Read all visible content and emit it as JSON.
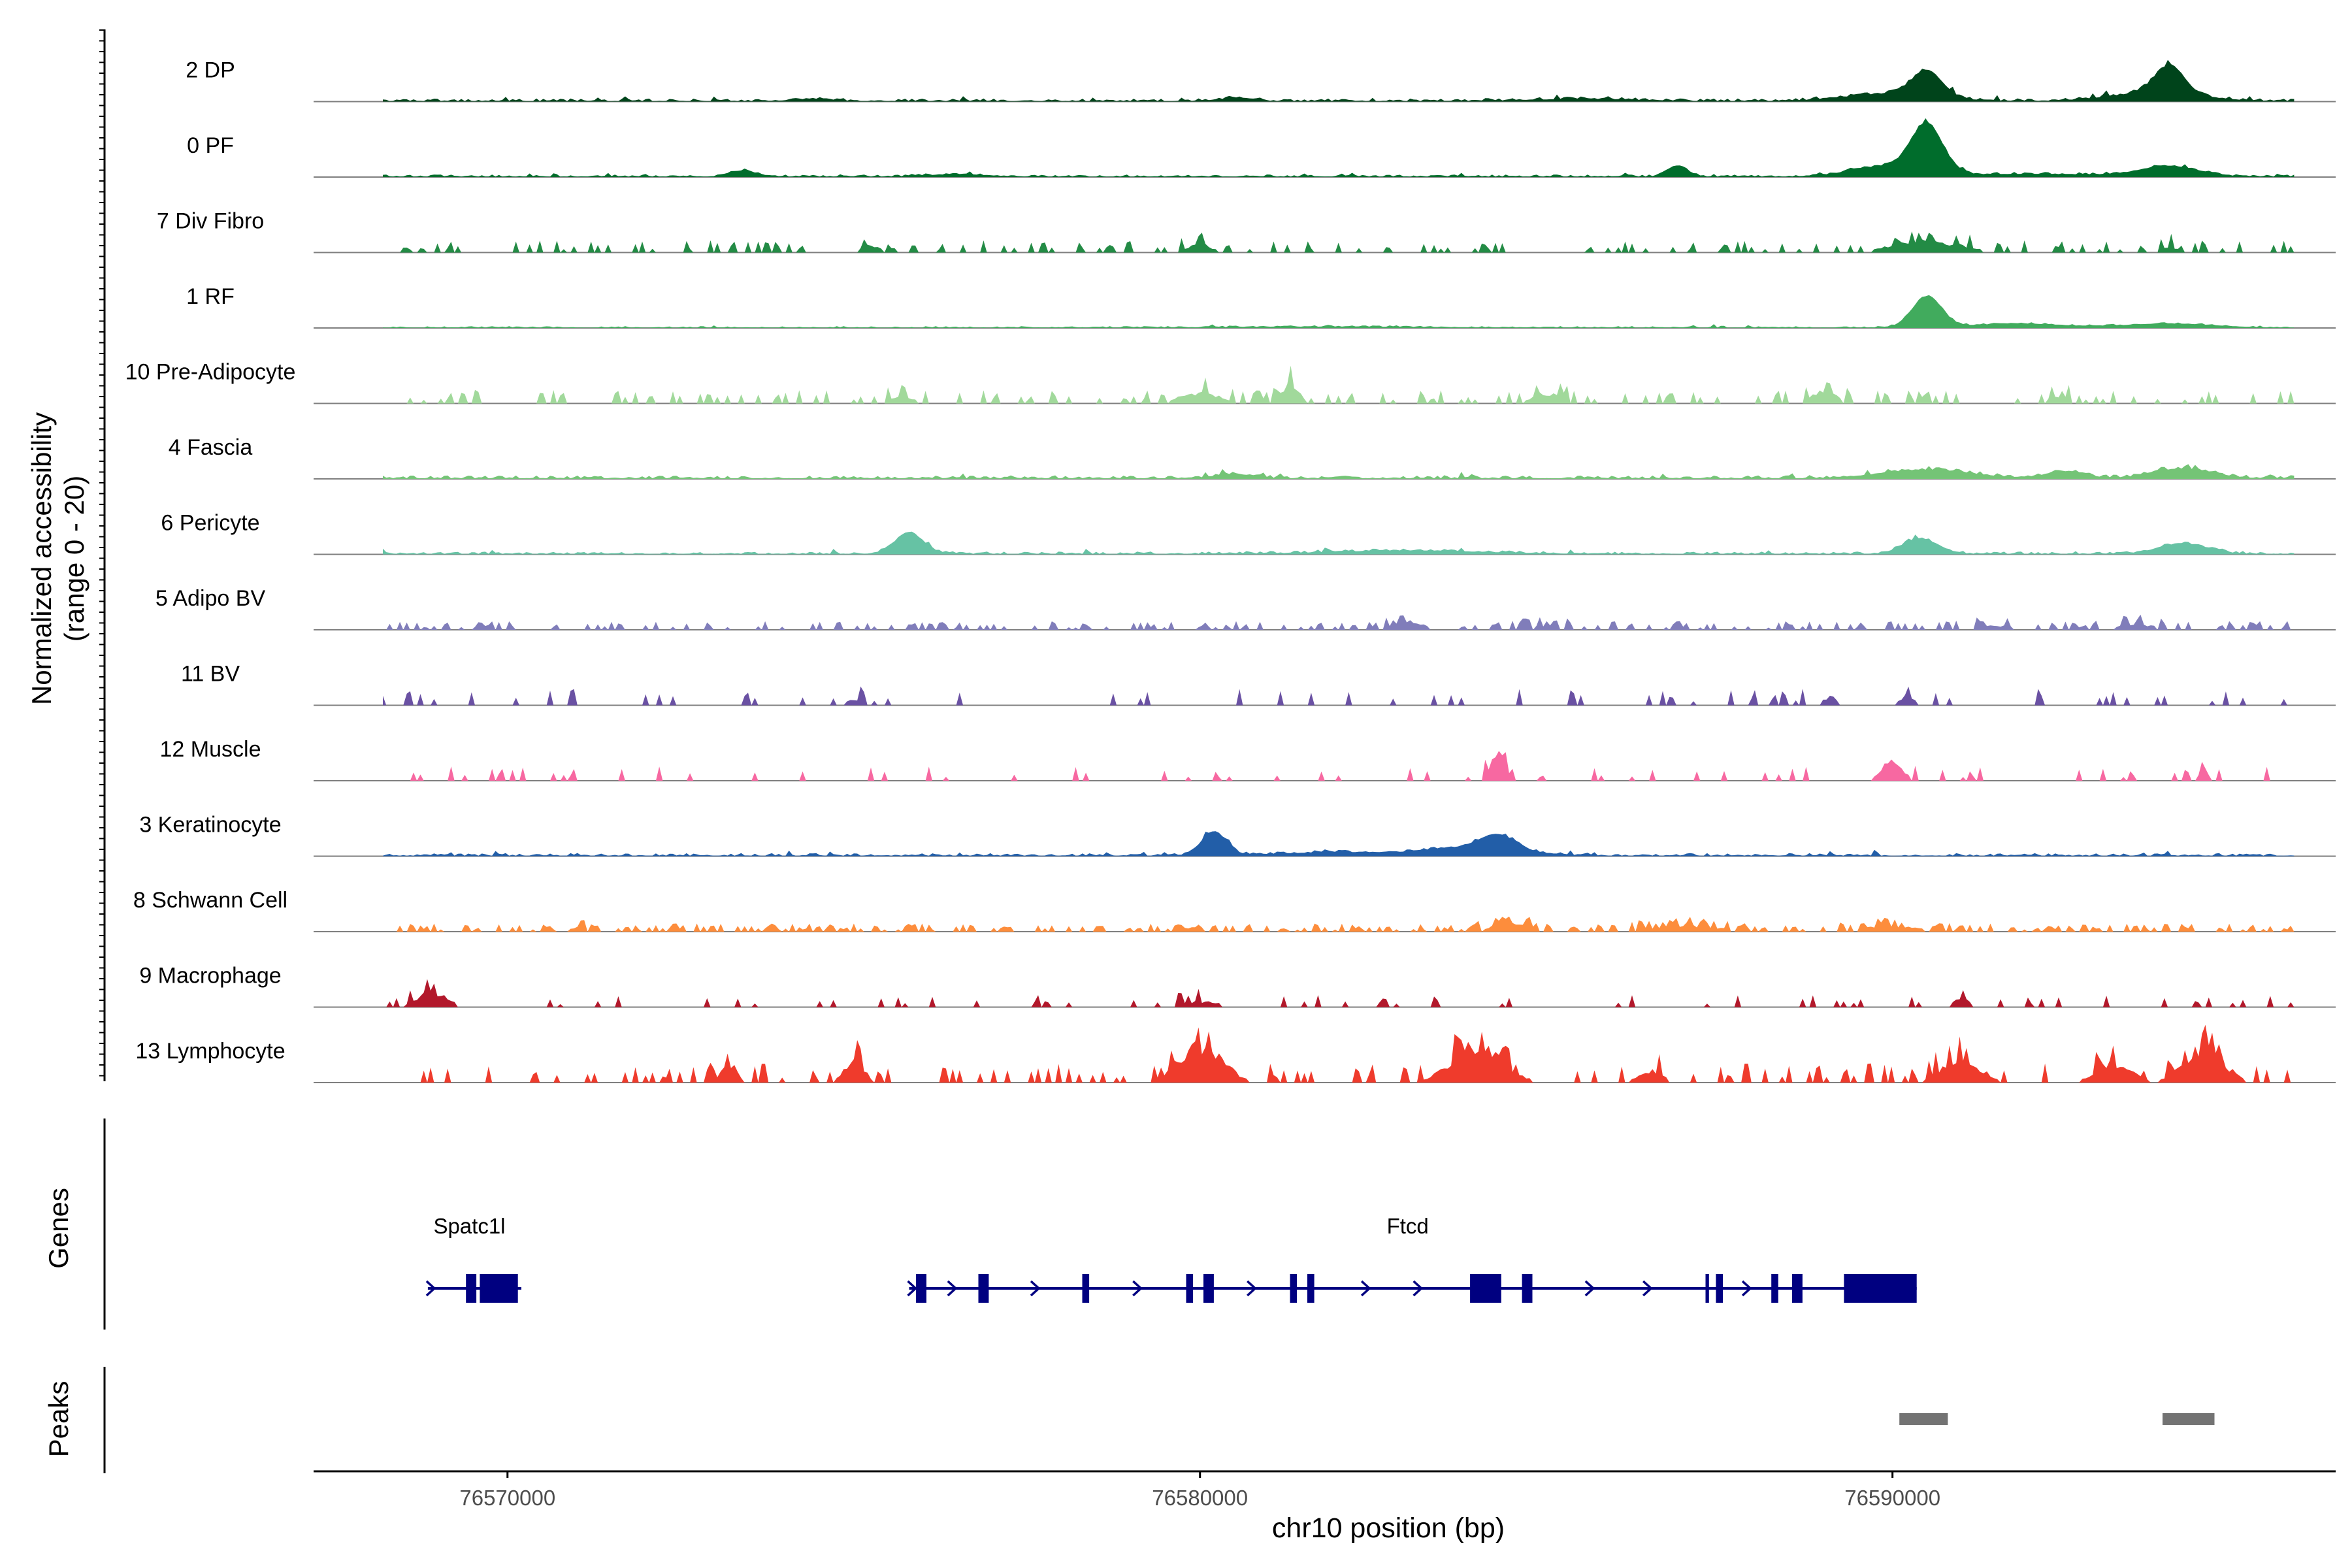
{
  "chart_data": {
    "type": "area",
    "title": "",
    "xlabel": "chr10 position (bp)",
    "ylabel_line1": "Normalized accessibility",
    "ylabel_line2": "(range 0 - 20)",
    "ylim": [
      0,
      20
    ],
    "xlim": [
      76567200,
      76596400
    ],
    "x_ticks": [
      {
        "value": 76570000,
        "label": "76570000"
      },
      {
        "value": 76580000,
        "label": "76580000"
      },
      {
        "value": 76590000,
        "label": "76590000"
      }
    ],
    "track_range": [
      76568200,
      76595800
    ],
    "panel_labels": {
      "genes": "Genes",
      "peaks": "Peaks"
    },
    "series": [
      {
        "name": "2 DP",
        "color": "#00441b",
        "kind": "dense",
        "base": 0.5,
        "peaks": [
          [
            76574400,
            0.6,
            400
          ],
          [
            76580500,
            0.8,
            350
          ],
          [
            76590500,
            7.5,
            300
          ],
          [
            76590000,
            2.2,
            900
          ],
          [
            76594000,
            8.0,
            300
          ],
          [
            76593800,
            2.5,
            900
          ],
          [
            76585500,
            0.6,
            1000
          ]
        ]
      },
      {
        "name": "0 PF",
        "color": "#006d2c",
        "kind": "dense",
        "base": 0.4,
        "peaks": [
          [
            76573400,
            1.8,
            250
          ],
          [
            76576500,
            0.7,
            600
          ],
          [
            76586900,
            3.2,
            200
          ],
          [
            76590500,
            14.0,
            320
          ],
          [
            76589900,
            3.0,
            700
          ],
          [
            76594000,
            3.0,
            600
          ],
          [
            76592000,
            0.8,
            1400
          ]
        ]
      },
      {
        "name": "7 Div Fibro",
        "color": "#238b45",
        "kind": "sparse",
        "threshold": 0.75,
        "density": 2.2,
        "peaks": [
          [
            76575200,
            3.0,
            120
          ],
          [
            76580000,
            2.8,
            250
          ],
          [
            76590500,
            4.0,
            700
          ],
          [
            76594000,
            2.0,
            200
          ]
        ]
      },
      {
        "name": "1 RF",
        "color": "#41ab5d",
        "kind": "dense",
        "base": 0.3,
        "peaks": [
          [
            76590500,
            9.0,
            300
          ],
          [
            76591800,
            1.2,
            900
          ],
          [
            76594000,
            1.2,
            900
          ],
          [
            76582000,
            0.3,
            2000
          ]
        ]
      },
      {
        "name": "10 Pre-Adipocyte",
        "color": "#a1d99b",
        "kind": "sparse",
        "threshold": 0.72,
        "density": 2.5,
        "peaks": [
          [
            76581300,
            7.0,
            180
          ],
          [
            76580000,
            4.0,
            400
          ],
          [
            76585000,
            3.5,
            300
          ],
          [
            76589000,
            4.5,
            250
          ],
          [
            76575700,
            3.0,
            200
          ],
          [
            76592400,
            2.5,
            200
          ]
        ]
      },
      {
        "name": "4 Fascia",
        "color": "#74c476",
        "kind": "dense",
        "base": 0.55,
        "peaks": [
          [
            76590500,
            2.5,
            900
          ],
          [
            76592500,
            2.0,
            400
          ],
          [
            76594200,
            2.8,
            600
          ],
          [
            76580500,
            1.2,
            400
          ]
        ]
      },
      {
        "name": "6 Pericyte",
        "color": "#66c2a4",
        "kind": "dense",
        "base": 0.45,
        "peaks": [
          [
            76575800,
            6.0,
            300
          ],
          [
            76590400,
            4.5,
            350
          ],
          [
            76594200,
            3.0,
            500
          ],
          [
            76583000,
            1.0,
            1500
          ]
        ]
      },
      {
        "name": "5 Adipo BV",
        "color": "#807dba",
        "kind": "sparse",
        "threshold": 0.62,
        "density": 1.6,
        "peaks": [
          [
            76583000,
            3.0,
            300
          ],
          [
            76585000,
            1.5,
            400
          ],
          [
            76593500,
            2.0,
            400
          ],
          [
            76591500,
            1.5,
            500
          ]
        ]
      },
      {
        "name": "11 BV",
        "color": "#6a51a3",
        "kind": "sparse",
        "threshold": 0.88,
        "density": 3.0,
        "peaks": [
          [
            76575000,
            2.0,
            150
          ],
          [
            76589100,
            3.0,
            150
          ],
          [
            76590200,
            3.2,
            150
          ]
        ]
      },
      {
        "name": "12 Muscle",
        "color": "#f768a1",
        "kind": "sparse",
        "threshold": 0.87,
        "density": 2.6,
        "peaks": [
          [
            76584300,
            9.0,
            150
          ],
          [
            76590000,
            7.0,
            200
          ],
          [
            76594500,
            4.0,
            100
          ]
        ]
      },
      {
        "name": "3 Keratinocyte",
        "color": "#225ea8",
        "kind": "dense",
        "base": 0.5,
        "peaks": [
          [
            76580200,
            7.0,
            250
          ],
          [
            76584300,
            4.0,
            350
          ],
          [
            76584000,
            2.5,
            900
          ],
          [
            76582000,
            1.0,
            1200
          ]
        ]
      },
      {
        "name": "8 Schwann Cell",
        "color": "#fd8d3c",
        "kind": "sparse",
        "threshold": 0.55,
        "density": 1.5,
        "peaks": [
          [
            76584500,
            3.0,
            400
          ],
          [
            76587000,
            2.0,
            800
          ],
          [
            76590000,
            2.0,
            600
          ],
          [
            76571000,
            1.5,
            200
          ]
        ]
      },
      {
        "name": "9 Macrophage",
        "color": "#b2182b",
        "kind": "sparse",
        "threshold": 0.85,
        "density": 2.2,
        "peaks": [
          [
            76568900,
            5.5,
            300
          ],
          [
            76591000,
            3.5,
            150
          ],
          [
            76580000,
            2.0,
            400
          ]
        ]
      },
      {
        "name": "13 Lymphocyte",
        "color": "#ef3b2c",
        "kind": "sparse",
        "threshold": 0.77,
        "density": 3.5,
        "peaks": [
          [
            76580000,
            13.0,
            450
          ],
          [
            76584000,
            13.0,
            500
          ],
          [
            76594500,
            12.0,
            400
          ],
          [
            76575000,
            8.0,
            200
          ],
          [
            76573200,
            7.0,
            150
          ],
          [
            76591000,
            8.0,
            400
          ],
          [
            76593200,
            7.0,
            350
          ],
          [
            76586500,
            4.0,
            250
          ]
        ]
      }
    ],
    "genes": [
      {
        "name": "Spatc1l",
        "label_pos": 76569450,
        "start": 76568850,
        "end": 76570200,
        "strand": "+",
        "exons": [
          [
            76569400,
            76569550
          ],
          [
            76569600,
            76570150
          ]
        ]
      },
      {
        "name": "Ftcd",
        "label_pos": 76583000,
        "start": 76575800,
        "end": 76590350,
        "strand": "+",
        "exons": [
          [
            76575900,
            76576050
          ],
          [
            76576800,
            76576950
          ],
          [
            76578300,
            76578400
          ],
          [
            76579800,
            76579900
          ],
          [
            76580050,
            76580200
          ],
          [
            76581300,
            76581400
          ],
          [
            76581550,
            76581650
          ],
          [
            76583900,
            76584350
          ],
          [
            76584650,
            76584800
          ],
          [
            76587300,
            76587350
          ],
          [
            76587450,
            76587550
          ],
          [
            76588250,
            76588350
          ],
          [
            76588550,
            76588700
          ],
          [
            76589300,
            76590350
          ]
        ]
      }
    ],
    "peaks": [
      [
        76590100,
        76590800
      ],
      [
        76593900,
        76594650
      ]
    ],
    "peak_color": "#737373",
    "gene_color": "#000080"
  }
}
